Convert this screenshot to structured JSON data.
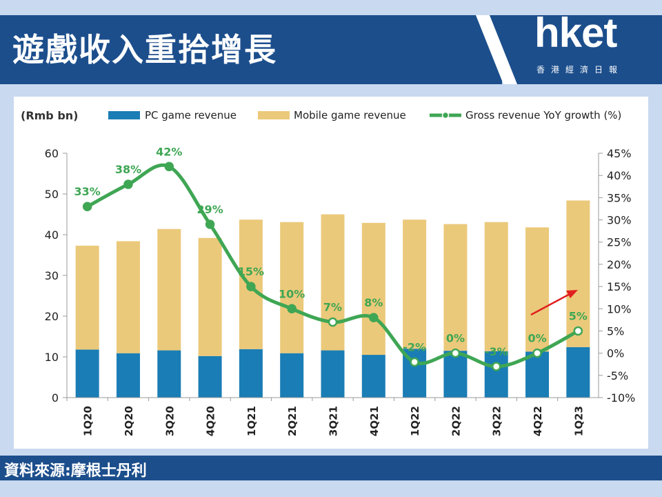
{
  "header": {
    "title": "遊戲收入重拾增長",
    "logo": "hket",
    "logo_sub": "香港經濟日報"
  },
  "footer": {
    "source": "資料來源:摩根士丹利"
  },
  "colors": {
    "header_bg": "#1c4e8c",
    "pc": "#1a7db5",
    "mobile": "#ebc97a",
    "growth": "#3fa654",
    "arrow": "#e02020"
  },
  "chart_data": {
    "type": "bar",
    "stacked": true,
    "unit_label": "(Rmb bn)",
    "categories": [
      "1Q20",
      "2Q20",
      "3Q20",
      "4Q20",
      "1Q21",
      "2Q21",
      "3Q21",
      "4Q21",
      "1Q22",
      "2Q22",
      "3Q22",
      "4Q22",
      "1Q23"
    ],
    "series": [
      {
        "name": "PC game revenue",
        "values": [
          11.8,
          10.9,
          11.6,
          10.2,
          11.9,
          10.9,
          11.6,
          10.5,
          12.0,
          11.5,
          11.4,
          11.3,
          12.4
        ]
      },
      {
        "name": "Mobile game revenue",
        "values": [
          25.5,
          27.5,
          29.8,
          29.0,
          31.8,
          32.2,
          33.4,
          32.4,
          31.7,
          31.1,
          31.7,
          30.5,
          36.0
        ]
      }
    ],
    "line_series": {
      "name": "Gross revenue YoY growth (%)",
      "values": [
        33,
        38,
        42,
        29,
        15,
        10,
        7,
        8,
        -2,
        0,
        -3,
        0,
        5
      ],
      "labels": [
        "33%",
        "38%",
        "42%",
        "29%",
        "15%",
        "10%",
        "7%",
        "8%",
        "-2%",
        "0%",
        "-3%",
        "0%",
        "5%"
      ]
    },
    "y_left": {
      "min": 0,
      "max": 60,
      "ticks": [
        "0",
        "10",
        "20",
        "30",
        "40",
        "50",
        "60"
      ]
    },
    "y_right": {
      "min": -10,
      "max": 45,
      "ticks": [
        "-10%",
        "-5%",
        "0%",
        "5%",
        "10%",
        "15%",
        "20%",
        "25%",
        "30%",
        "35%",
        "40%",
        "45%"
      ]
    },
    "legend_position": "top",
    "annotation": "red arrow pointing up-right near 1Q23"
  }
}
